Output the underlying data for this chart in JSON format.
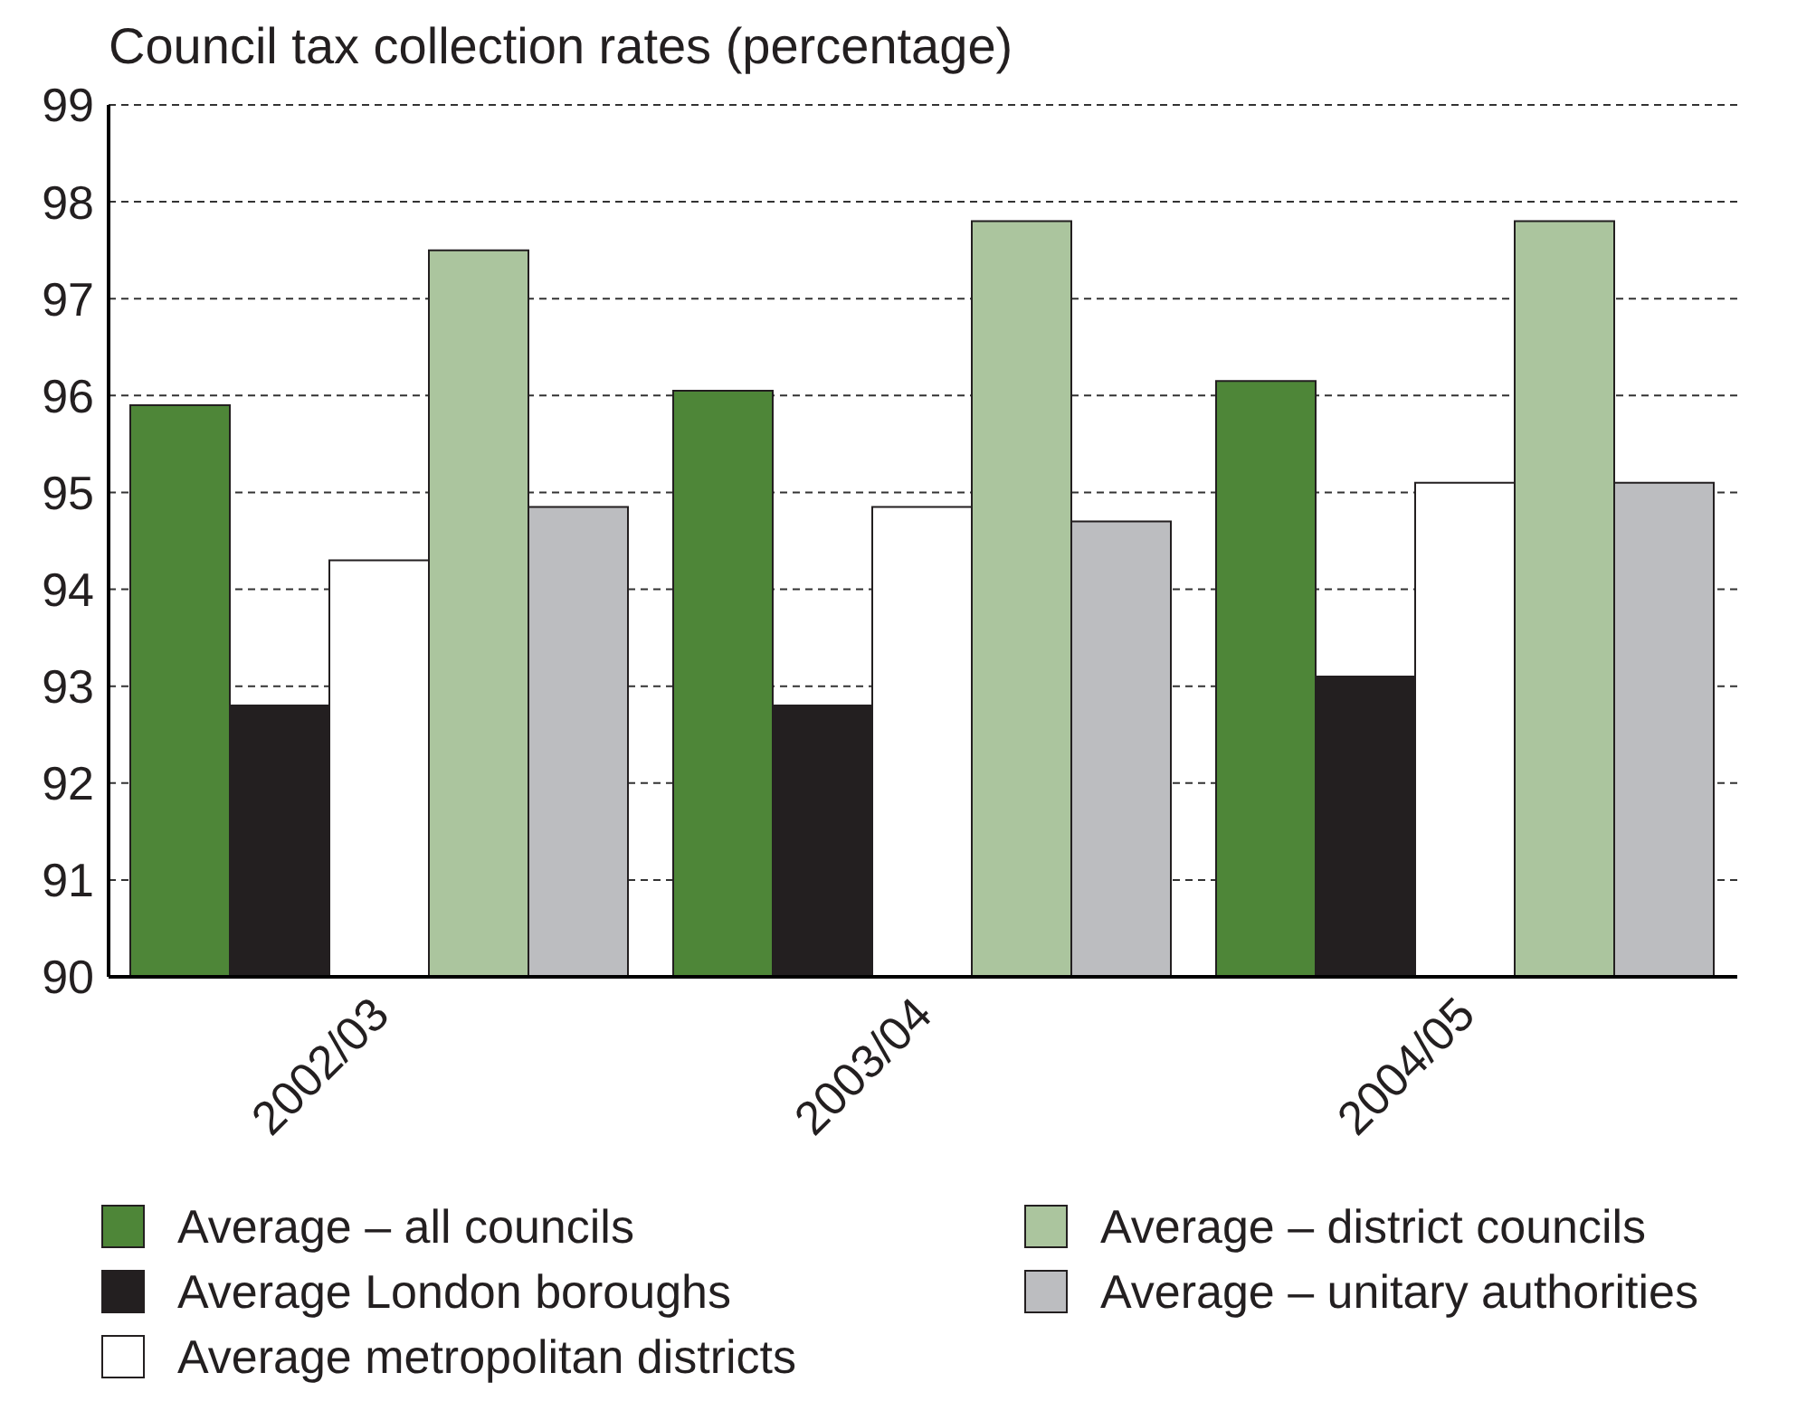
{
  "chart_data": {
    "type": "bar",
    "title": "Council tax collection rates (percentage)",
    "categories": [
      "2002/03",
      "2003/04",
      "2004/05"
    ],
    "series": [
      {
        "name": "Average – all councils",
        "color": "#4e8638",
        "values": [
          95.9,
          96.05,
          96.15
        ]
      },
      {
        "name": "Average London boroughs",
        "color": "#231f20",
        "values": [
          92.8,
          92.8,
          93.1
        ]
      },
      {
        "name": "Average metropolitan districts",
        "color": "#ffffff",
        "values": [
          94.3,
          94.85,
          95.1
        ]
      },
      {
        "name": "Average – district councils",
        "color": "#abc59e",
        "values": [
          97.5,
          97.8,
          97.8
        ]
      },
      {
        "name": "Average – unitary authorities",
        "color": "#bcbdc0",
        "values": [
          94.85,
          94.7,
          95.1
        ]
      }
    ],
    "ylim": [
      90,
      99
    ],
    "yticks": [
      90,
      91,
      92,
      93,
      94,
      95,
      96,
      97,
      98,
      99
    ],
    "grid": "y",
    "legend": "bottom"
  }
}
